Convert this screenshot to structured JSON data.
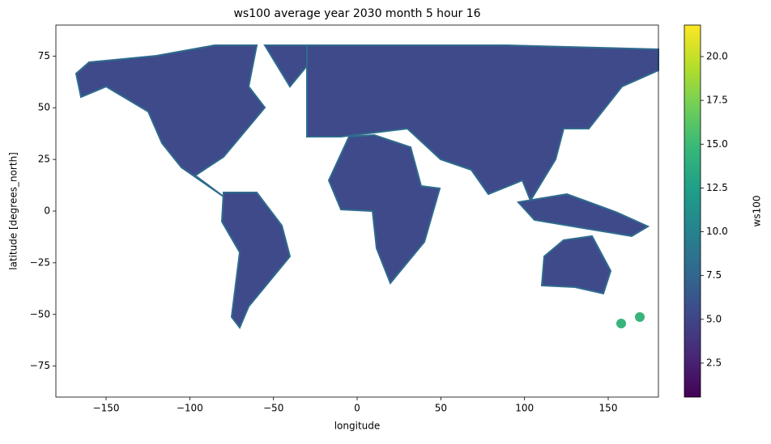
{
  "chart_data": {
    "type": "heatmap",
    "title": "ws100 average year 2030 month 5 hour 16",
    "xlabel": "longitude",
    "ylabel": "latitude [degrees_north]",
    "xlim": [
      -180,
      180
    ],
    "ylim": [
      -90,
      90
    ],
    "xticks": [
      {
        "value": -150,
        "label": "−150"
      },
      {
        "value": -100,
        "label": "−100"
      },
      {
        "value": -50,
        "label": "−50"
      },
      0,
      50,
      100,
      150
    ],
    "yticks": [
      {
        "value": -75,
        "label": "−75"
      },
      {
        "value": -50,
        "label": "−50"
      },
      {
        "value": -25,
        "label": "−25"
      },
      0,
      25,
      50,
      75
    ],
    "colorbar": {
      "label": "ws100",
      "colormap": "viridis",
      "clim": [
        0.56,
        21.8
      ],
      "ticks": [
        2.5,
        {
          "value": 5,
          "label": "5.0"
        },
        7.5,
        {
          "value": 10,
          "label": "10.0"
        },
        12.5,
        {
          "value": 15,
          "label": "15.0"
        },
        17.5,
        {
          "value": 20,
          "label": "20.0"
        }
      ]
    }
  }
}
